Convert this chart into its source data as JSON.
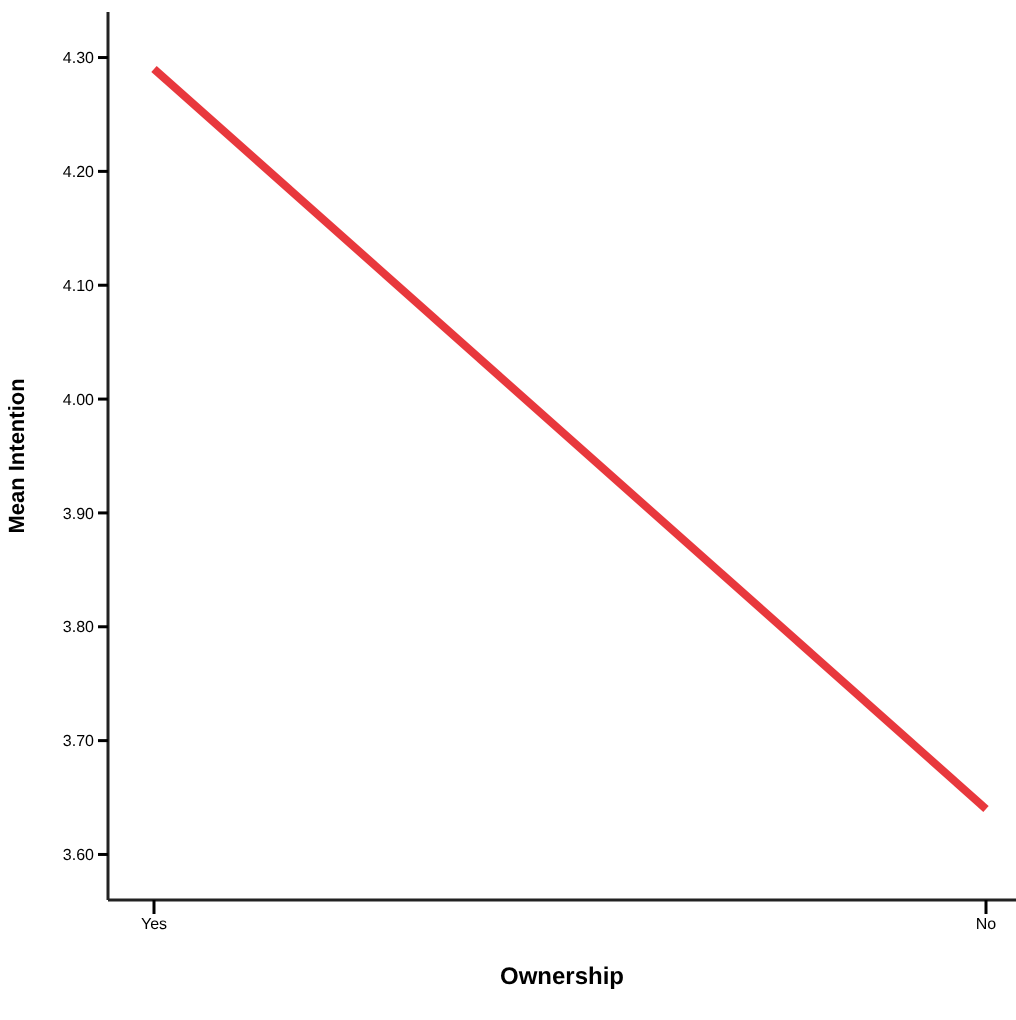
{
  "chart_data": {
    "type": "line",
    "xlabel": "Ownership",
    "ylabel": "Mean Intention",
    "categories": [
      "Yes",
      "No"
    ],
    "series": [
      {
        "color": "#e8383d",
        "values": [
          4.29,
          3.64
        ]
      }
    ],
    "ylim": [
      3.56,
      4.34
    ],
    "yticks": [
      {
        "value": 3.6,
        "label": "3.60"
      },
      {
        "value": 3.7,
        "label": "3.70"
      },
      {
        "value": 3.8,
        "label": "3.80"
      },
      {
        "value": 3.9,
        "label": "3.90"
      },
      {
        "value": 4.0,
        "label": "4.00"
      },
      {
        "value": 4.1,
        "label": "4.10"
      },
      {
        "value": 4.2,
        "label": "4.20"
      },
      {
        "value": 4.3,
        "label": "4.30"
      }
    ],
    "grid": false,
    "marker": "none",
    "line_style": "solid"
  }
}
